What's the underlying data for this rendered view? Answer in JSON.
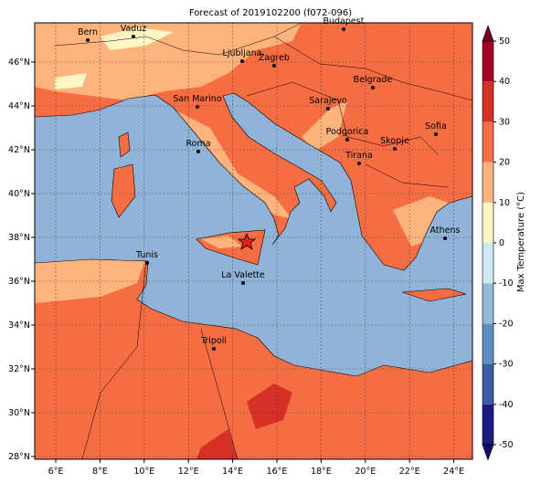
{
  "map": {
    "title": "Forecast of 2019102200 (f072-096)",
    "lon_ticks": [
      {
        "value": 6,
        "label": "6°E"
      },
      {
        "value": 8,
        "label": "8°E"
      },
      {
        "value": 10,
        "label": "10°E"
      },
      {
        "value": 12,
        "label": "12°E"
      },
      {
        "value": 14,
        "label": "14°E"
      },
      {
        "value": 16,
        "label": "16°E"
      },
      {
        "value": 18,
        "label": "18°E"
      },
      {
        "value": 20,
        "label": "20°E"
      },
      {
        "value": 22,
        "label": "22°E"
      },
      {
        "value": 24,
        "label": "24°E"
      }
    ],
    "lat_ticks": [
      {
        "value": 46,
        "label": "46°N"
      },
      {
        "value": 44,
        "label": "44°N"
      },
      {
        "value": 42,
        "label": "42°N"
      },
      {
        "value": 40,
        "label": "40°N"
      },
      {
        "value": 38,
        "label": "38°N"
      },
      {
        "value": 36,
        "label": "36°N"
      },
      {
        "value": 34,
        "label": "34°N"
      },
      {
        "value": 32,
        "label": "32°N"
      },
      {
        "value": 30,
        "label": "30°N"
      },
      {
        "value": 28,
        "label": "28°N"
      }
    ],
    "cities": [
      "Bern",
      "Vaduz",
      "Budapest",
      "Ljubljana",
      "Zagreb",
      "Belgrade",
      "San Marino",
      "Sarajevo",
      "Sofia",
      "Podgorica",
      "Skopje",
      "Roma",
      "Tirana",
      "Athens",
      "Tunis",
      "La Valette",
      "Tripoli"
    ]
  },
  "colorbar": {
    "label": "Max Temperature (°C)",
    "ticks": [
      -50,
      -40,
      -30,
      -20,
      -10,
      0,
      10,
      20,
      30,
      40,
      50
    ],
    "colors": [
      "#1b1b82",
      "#3a5ba8",
      "#5c8fc3",
      "#93bad9",
      "#cde8f0",
      "#fff6c4",
      "#fdb47c",
      "#f46d43",
      "#d73027",
      "#a50026"
    ],
    "under_color": "#10106a",
    "over_color": "#7a0020"
  }
}
